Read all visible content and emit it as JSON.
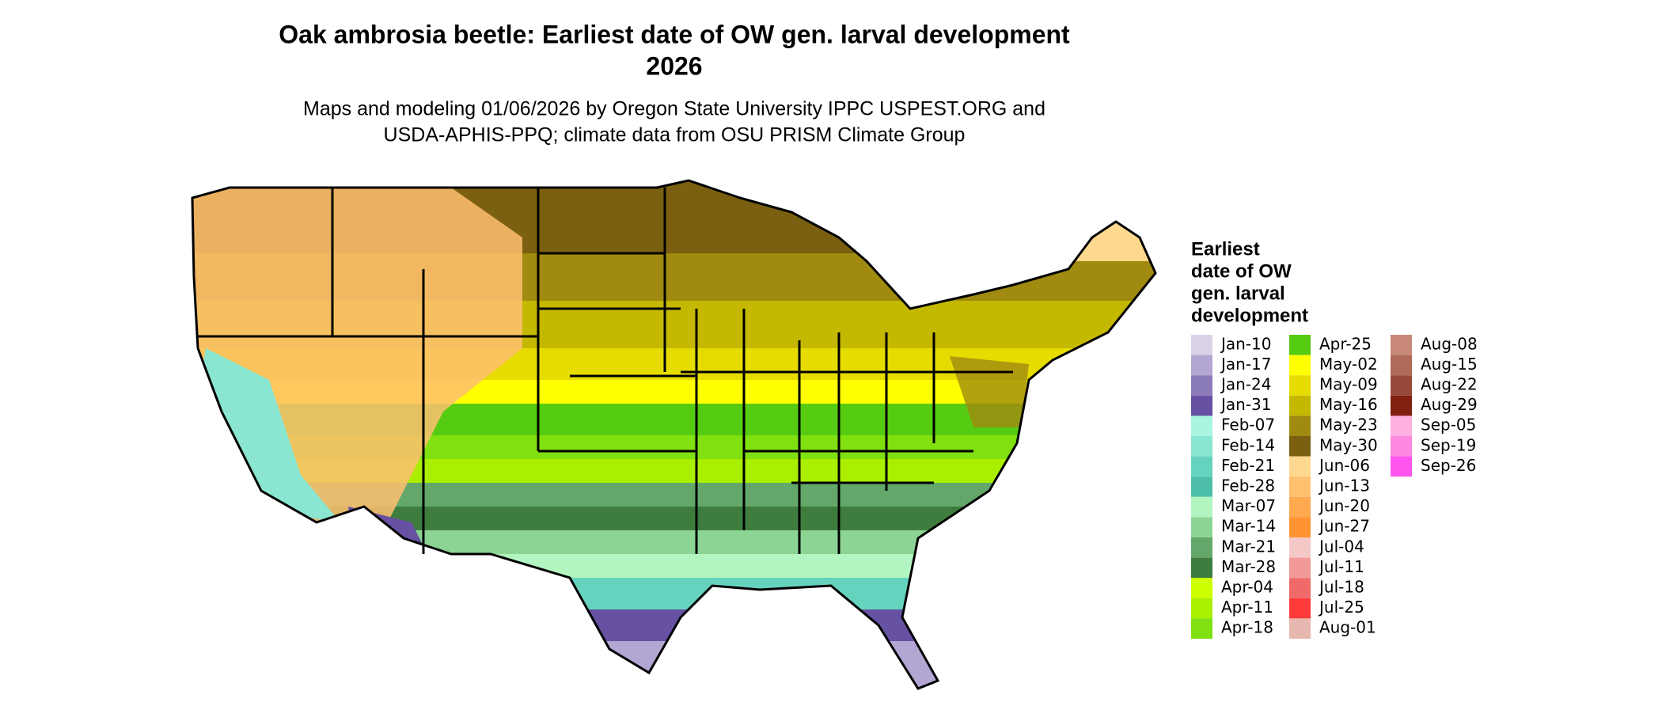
{
  "title": [
    "Oak ambrosia beetle: Earliest date of OW gen. larval development",
    "2026"
  ],
  "subtitle": [
    "Maps and modeling 01/06/2026 by Oregon State University IPPC USPEST.ORG and",
    "USDA-APHIS-PPQ; climate data from OSU PRISM Climate Group"
  ],
  "legend": {
    "title": [
      "Earliest",
      "date of OW",
      "gen. larval",
      "development"
    ],
    "items": [
      {
        "label": "Jan-10",
        "color": "#d9d2e9"
      },
      {
        "label": "Jan-17",
        "color": "#b3a6d3"
      },
      {
        "label": "Jan-24",
        "color": "#8c7bbb"
      },
      {
        "label": "Jan-31",
        "color": "#6651a2"
      },
      {
        "label": "Feb-07",
        "color": "#a9f5e0"
      },
      {
        "label": "Feb-14",
        "color": "#8ae6d0"
      },
      {
        "label": "Feb-21",
        "color": "#66d3bf"
      },
      {
        "label": "Feb-28",
        "color": "#4dbfa9"
      },
      {
        "label": "Mar-07",
        "color": "#b3f5c0"
      },
      {
        "label": "Mar-14",
        "color": "#8cd494"
      },
      {
        "label": "Mar-21",
        "color": "#63a86a"
      },
      {
        "label": "Mar-28",
        "color": "#3e7d3e"
      },
      {
        "label": "Apr-04",
        "color": "#ccff00"
      },
      {
        "label": "Apr-11",
        "color": "#aaee00"
      },
      {
        "label": "Apr-18",
        "color": "#80e010"
      },
      {
        "label": "Apr-25",
        "color": "#55cc11"
      },
      {
        "label": "May-02",
        "color": "#ffff00"
      },
      {
        "label": "May-09",
        "color": "#e6dc00"
      },
      {
        "label": "May-16",
        "color": "#c4b800"
      },
      {
        "label": "May-23",
        "color": "#a08a10"
      },
      {
        "label": "May-30",
        "color": "#7a6010"
      },
      {
        "label": "Jun-06",
        "color": "#ffd890"
      },
      {
        "label": "Jun-13",
        "color": "#ffc070"
      },
      {
        "label": "Jun-20",
        "color": "#ffaa50"
      },
      {
        "label": "Jun-27",
        "color": "#ff9430"
      },
      {
        "label": "Jul-04",
        "color": "#f5c8c8"
      },
      {
        "label": "Jul-11",
        "color": "#f29a9a"
      },
      {
        "label": "Jul-18",
        "color": "#f06a6a"
      },
      {
        "label": "Jul-25",
        "color": "#ff3a3a"
      },
      {
        "label": "Aug-01",
        "color": "#e6b8b0"
      },
      {
        "label": "Aug-08",
        "color": "#c88878"
      },
      {
        "label": "Aug-15",
        "color": "#b06a58"
      },
      {
        "label": "Aug-22",
        "color": "#984838"
      },
      {
        "label": "Aug-29",
        "color": "#802010"
      },
      {
        "label": "Sep-05",
        "color": "#ffb0e0"
      },
      {
        "label": "Sep-19",
        "color": "#ff88e0"
      },
      {
        "label": "Sep-26",
        "color": "#ff55ee"
      }
    ]
  }
}
